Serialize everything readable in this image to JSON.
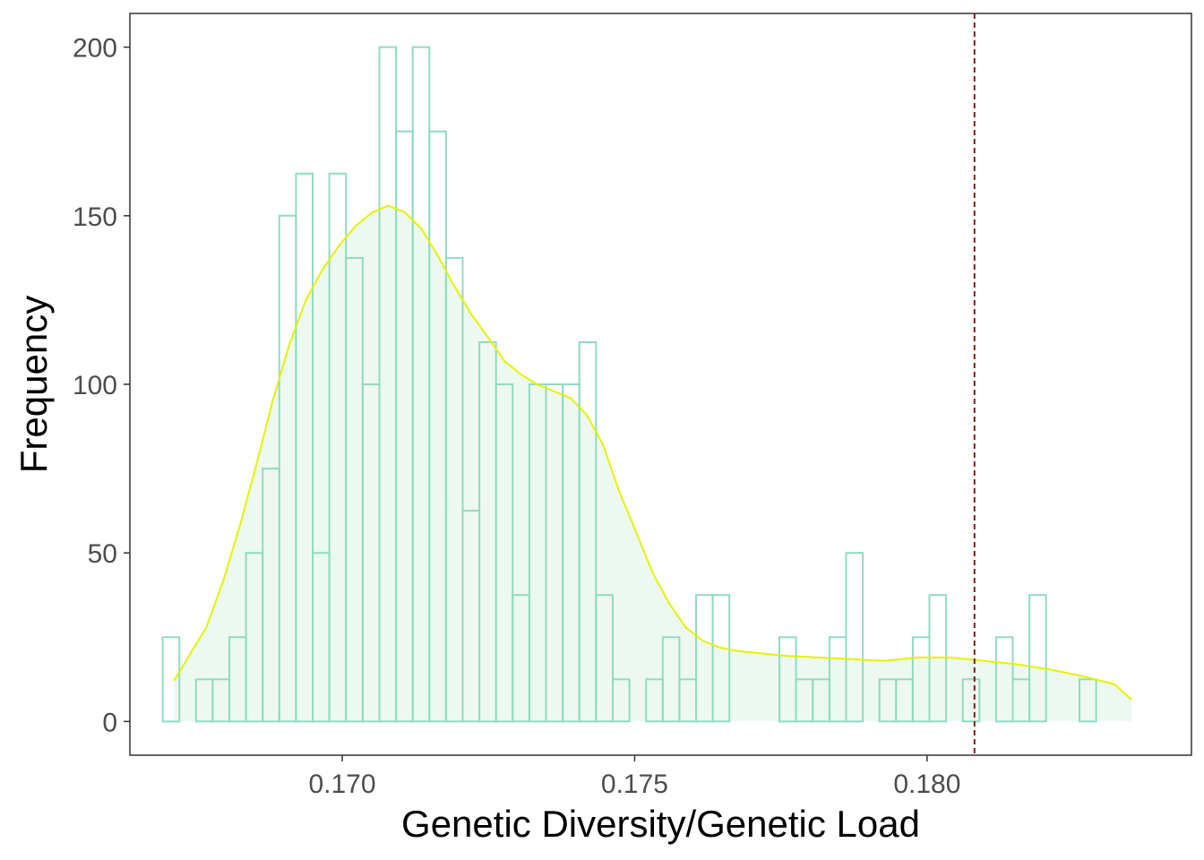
{
  "chart_data": {
    "type": "histogram",
    "title": "",
    "xlabel": "Genetic Diversity/Genetic Load",
    "ylabel": "Frequency",
    "xlim": [
      0.16637,
      0.18452
    ],
    "ylim": [
      -10,
      210
    ],
    "x_ticks": [
      0.17,
      0.175,
      0.18
    ],
    "x_tick_labels": [
      "0.170",
      "0.175",
      "0.180"
    ],
    "y_ticks": [
      0,
      50,
      100,
      150,
      200
    ],
    "y_tick_labels": [
      "0",
      "50",
      "100",
      "150",
      "200"
    ],
    "grid": false,
    "legend": "none",
    "bins": {
      "start": 0.16693,
      "width": 0.000285,
      "counts": [
        25,
        0,
        12.5,
        12.5,
        25,
        50,
        75,
        150,
        162.5,
        50,
        162.5,
        137.5,
        100,
        200,
        175,
        200,
        175,
        137.5,
        62.5,
        112.5,
        100,
        37.5,
        100,
        100,
        100,
        112.5,
        37.5,
        12.5,
        0,
        12.5,
        25,
        12.5,
        37.5,
        37.5,
        0,
        0,
        0,
        25,
        12.5,
        12.5,
        25,
        50,
        0,
        12.5,
        12.5,
        25,
        37.5,
        0,
        12.5,
        0,
        25,
        12.5,
        37.5,
        0,
        0,
        12.5
      ]
    },
    "density_curve": {
      "x": [
        0.16712,
        0.1674,
        0.16768,
        0.16797,
        0.16825,
        0.16853,
        0.16881,
        0.1691,
        0.16938,
        0.16966,
        0.16994,
        0.17023,
        0.17051,
        0.17079,
        0.17107,
        0.17136,
        0.17164,
        0.17192,
        0.1722,
        0.17249,
        0.17277,
        0.17305,
        0.17333,
        0.17361,
        0.1739,
        0.17418,
        0.17446,
        0.17474,
        0.17503,
        0.17531,
        0.17559,
        0.17587,
        0.17616,
        0.17644,
        0.17672,
        0.177,
        0.17729,
        0.17757,
        0.17813,
        0.1787,
        0.17926,
        0.17983,
        0.18039,
        0.18096,
        0.18152,
        0.18208,
        0.18265,
        0.18321,
        0.18349
      ],
      "y": [
        12,
        20,
        28,
        42,
        58,
        76,
        95,
        112,
        125,
        134,
        141,
        147,
        151,
        153,
        151,
        146,
        138,
        129,
        121,
        114,
        107,
        103,
        100,
        98,
        96,
        91,
        82,
        68,
        56,
        44,
        35,
        28,
        24,
        22,
        21,
        20.5,
        20,
        19.5,
        19,
        18.5,
        18,
        19,
        19,
        18,
        17,
        15.5,
        13.5,
        11,
        6.5
      ]
    },
    "reference_line": {
      "x": 0.18081,
      "style": "dashed",
      "color": "#8b1a1a"
    },
    "colors": {
      "bar_outline": "#8fdcbf",
      "area_fill": "#edf8f2",
      "curve": "#e6f200",
      "panel_border": "#333333",
      "tick_text": "#4d4d4d"
    }
  }
}
